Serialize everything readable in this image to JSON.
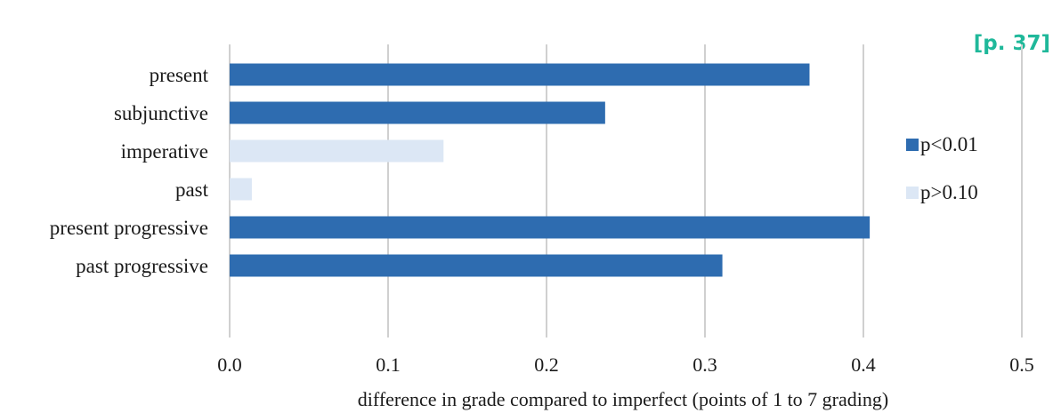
{
  "page_ref": "[p. 37]",
  "colors": {
    "significant": "#2e6cb0",
    "not_significant": "#dce7f5",
    "grid": "#d0d0d0",
    "page_ref": "#1fb89a"
  },
  "chart_data": {
    "type": "bar",
    "orientation": "horizontal",
    "categories": [
      "present",
      "subjunctive",
      "imperative",
      "past",
      "present progressive",
      "past progressive"
    ],
    "values": [
      0.366,
      0.237,
      0.135,
      0.014,
      0.404,
      0.311
    ],
    "significance": [
      "p<0.01",
      "p<0.01",
      "p>0.10",
      "p>0.10",
      "p<0.01",
      "p<0.01"
    ],
    "xlabel": "difference in grade compared to imperfect (points of 1 to 7 grading)",
    "ylabel": "",
    "xlim": [
      0,
      0.5
    ],
    "ticks": [
      "0.0",
      "0.1",
      "0.2",
      "0.3",
      "0.4",
      "0.5"
    ],
    "grid": true,
    "legend": {
      "placement": "right",
      "entries": [
        {
          "label": "p<0.01",
          "color": "#2e6cb0"
        },
        {
          "label": "p>0.10",
          "color": "#dce7f5"
        }
      ]
    }
  }
}
